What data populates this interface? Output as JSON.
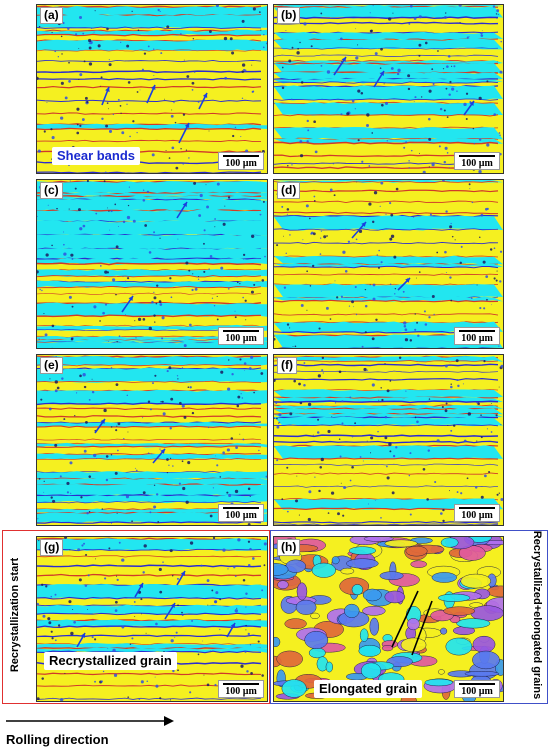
{
  "figure": {
    "panels": [
      {
        "label": "(a)",
        "scale": "100 µm"
      },
      {
        "label": "(b)",
        "scale": "100 µm"
      },
      {
        "label": "(c)",
        "scale": "100 µm"
      },
      {
        "label": "(d)",
        "scale": "100 µm"
      },
      {
        "label": "(e)",
        "scale": "100 µm"
      },
      {
        "label": "(f)",
        "scale": "100 µm"
      },
      {
        "label": "(g)",
        "scale": "100 µm"
      },
      {
        "label": "(h)",
        "scale": "100 µm"
      }
    ],
    "callouts": {
      "shear_bands": "Shear bands",
      "recrystallized_grain": "Recrystallized grain",
      "elongated_grain": "Elongated grain"
    },
    "side_labels": {
      "left": "Recrystallization start",
      "right": "Recrystallized+elongated grains"
    },
    "rolling_direction": "Rolling direction",
    "colors": {
      "yellow_phase": "#f5f020",
      "cyan_phase": "#22e6f0",
      "red_boundary": "#d03a2a",
      "arrow": "#1a3fe0",
      "frame_left": "#e03030",
      "frame_right": "#4050c8",
      "callout_text": "#1a2ad0"
    }
  }
}
